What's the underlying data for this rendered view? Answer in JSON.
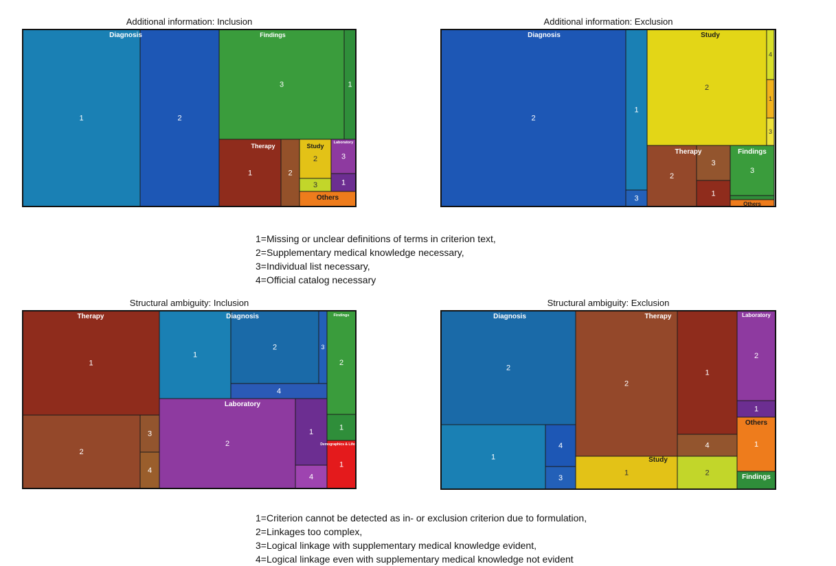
{
  "legend_a": [
    "1=Missing or unclear definitions of terms in criterion text,",
    "2=Supplementary medical knowledge necessary,",
    "3=Individual list necessary,",
    "4=Official catalog necessary"
  ],
  "legend_b": [
    "1=Criterion cannot be detected as in- or exclusion criterion due to formulation,",
    "2=Linkages too complex,",
    "3=Logical linkage with supplementary medical knowledge evident,",
    "4=Logical linkage even with supplementary medical knowledge not evident"
  ],
  "chart_data": [
    {
      "type": "treemap",
      "title": "Additional information: Inclusion",
      "groups": [
        {
          "name": "Diagnosis",
          "children": [
            {
              "label": "1",
              "value": 17.5,
              "color": "#1a80b4"
            },
            {
              "label": "2",
              "value": 11.9,
              "color": "#1d57b5"
            }
          ]
        },
        {
          "name": "Findings",
          "children": [
            {
              "label": "3",
              "value": 9.4,
              "color": "#3a9c3c"
            },
            {
              "label": "1",
              "value": 0.9,
              "color": "#2f8e3a"
            }
          ]
        },
        {
          "name": "Therapy",
          "children": [
            {
              "label": "1",
              "value": 3.0,
              "color": "#8f2c1c"
            },
            {
              "label": "2",
              "value": 0.9,
              "color": "#94512a"
            }
          ]
        },
        {
          "name": "Study",
          "children": [
            {
              "label": "2",
              "value": 1.3,
              "color": "#e3c217"
            },
            {
              "label": "3",
              "value": 0.4,
              "color": "#c2d62a"
            }
          ]
        },
        {
          "name": "Laboratory",
          "children": [
            {
              "label": "3",
              "value": 1.1,
              "color": "#8e3aa0"
            },
            {
              "label": "1",
              "value": 0.5,
              "color": "#6c2e91"
            }
          ]
        },
        {
          "name": "Others",
          "children": [
            {
              "label": "",
              "value": 0.4,
              "color": "#ee7c1c"
            }
          ]
        }
      ]
    },
    {
      "type": "treemap",
      "title": "Additional information: Exclusion",
      "groups": [
        {
          "name": "Diagnosis",
          "children": [
            {
              "label": "2",
              "value": 29.6,
              "color": "#1d57b5"
            },
            {
              "label": "1",
              "value": 2.9,
              "color": "#1a80b4"
            },
            {
              "label": "3",
              "value": 0.3,
              "color": "#2360b8"
            }
          ]
        },
        {
          "name": "Study",
          "children": [
            {
              "label": "2",
              "value": 11.4,
              "color": "#e3d617"
            },
            {
              "label": "4",
              "value": 0.5,
              "color": "#d8e02a"
            },
            {
              "label": "1",
              "value": 0.4,
              "color": "#f2b21c"
            },
            {
              "label": "3",
              "value": 0.3,
              "color": "#eee23a"
            }
          ]
        },
        {
          "name": "Therapy",
          "children": [
            {
              "label": "2",
              "value": 3.3,
              "color": "#94482a"
            },
            {
              "label": "3",
              "value": 1.3,
              "color": "#93552e"
            },
            {
              "label": "1",
              "value": 1.3,
              "color": "#8f2c1c"
            }
          ]
        },
        {
          "name": "Findings",
          "children": [
            {
              "label": "3",
              "value": 3.6,
              "color": "#3a9c3c"
            },
            {
              "label": "",
              "value": 0.2,
              "color": "#2f8e3a"
            }
          ]
        },
        {
          "name": "Others",
          "children": [
            {
              "label": "",
              "value": 0.2,
              "color": "#ee7c1c"
            }
          ]
        }
      ]
    },
    {
      "type": "treemap",
      "title": "Structural ambiguity: Inclusion",
      "groups": [
        {
          "name": "Therapy",
          "children": [
            {
              "label": "1",
              "value": 15.7,
              "color": "#8f2c1c"
            },
            {
              "label": "2",
              "value": 8.8,
              "color": "#94482a"
            },
            {
              "label": "3",
              "value": 1.3,
              "color": "#93552e"
            },
            {
              "label": "4",
              "value": 1.4,
              "color": "#9a5e2c"
            }
          ]
        },
        {
          "name": "Diagnosis",
          "children": [
            {
              "label": "1",
              "value": 5.4,
              "color": "#1a80b4"
            },
            {
              "label": "2",
              "value": 6.0,
              "color": "#1a6aa8"
            },
            {
              "label": "3",
              "value": 0.6,
              "color": "#2360b8"
            },
            {
              "label": "4",
              "value": 1.2,
              "color": "#2a5ab6"
            }
          ]
        },
        {
          "name": "Laboratory",
          "children": [
            {
              "label": "2",
              "value": 9.8,
              "color": "#8e3aa0"
            },
            {
              "label": "1",
              "value": 2.1,
              "color": "#6c2e91"
            },
            {
              "label": "4",
              "value": 0.9,
              "color": "#9e44b0"
            }
          ]
        },
        {
          "name": "Findings",
          "children": [
            {
              "label": "2",
              "value": 3.7,
              "color": "#3a9c3c"
            },
            {
              "label": "1",
              "value": 1.0,
              "color": "#2f8e3a"
            }
          ]
        },
        {
          "name": "Demographics & Lifestyle",
          "children": [
            {
              "label": "1",
              "value": 1.5,
              "color": "#e41a1c"
            }
          ]
        }
      ]
    },
    {
      "type": "treemap",
      "title": "Structural ambiguity: Exclusion",
      "groups": [
        {
          "name": "Diagnosis",
          "children": [
            {
              "label": "2",
              "value": 11.6,
              "color": "#1a6aa8"
            },
            {
              "label": "1",
              "value": 6.3,
              "color": "#1a80b4"
            },
            {
              "label": "4",
              "value": 1.6,
              "color": "#1d57b5"
            },
            {
              "label": "3",
              "value": 1.2,
              "color": "#2360b8"
            }
          ]
        },
        {
          "name": "Therapy",
          "children": [
            {
              "label": "2",
              "value": 11.6,
              "color": "#94482a"
            },
            {
              "label": "1",
              "value": 6.7,
              "color": "#8f2c1c"
            },
            {
              "label": "4",
              "value": 1.1,
              "color": "#93552e"
            }
          ]
        },
        {
          "name": "Study",
          "children": [
            {
              "label": "1",
              "value": 3.6,
              "color": "#e3c217"
            },
            {
              "label": "2",
              "value": 2.2,
              "color": "#c2d62a"
            }
          ]
        },
        {
          "name": "Laboratory",
          "children": [
            {
              "label": "2",
              "value": 4.0,
              "color": "#8e3aa0"
            },
            {
              "label": "1",
              "value": 0.8,
              "color": "#6c2e91"
            }
          ]
        },
        {
          "name": "Others",
          "children": [
            {
              "label": "1",
              "value": 2.6,
              "color": "#ee7c1c"
            }
          ]
        },
        {
          "name": "Findings",
          "children": [
            {
              "label": "",
              "value": 0.7,
              "color": "#2f8e3a"
            }
          ]
        }
      ]
    }
  ]
}
